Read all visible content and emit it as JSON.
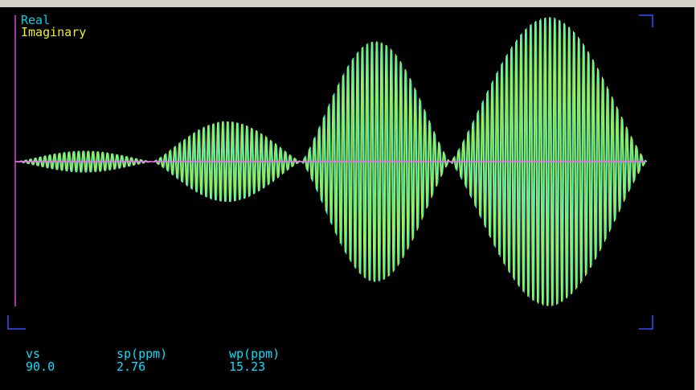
{
  "legend": {
    "real_label": "Real",
    "imag_label": "Imaginary"
  },
  "parameters": [
    {
      "label": "vs",
      "value": "90.0"
    },
    {
      "label": "sp(ppm)",
      "value": "2.76"
    },
    {
      "label": "wp(ppm)",
      "value": "15.23"
    }
  ],
  "colors": {
    "background": "#000000",
    "real_trace": "#00d0e0",
    "imag_trace": "#f0f020",
    "overlap_trace": "#70f080",
    "baseline": "#ff60ff",
    "frame_marks": "#3050ff",
    "axis_line": "#e040e0",
    "parameter_text": "#00e0ff"
  }
}
